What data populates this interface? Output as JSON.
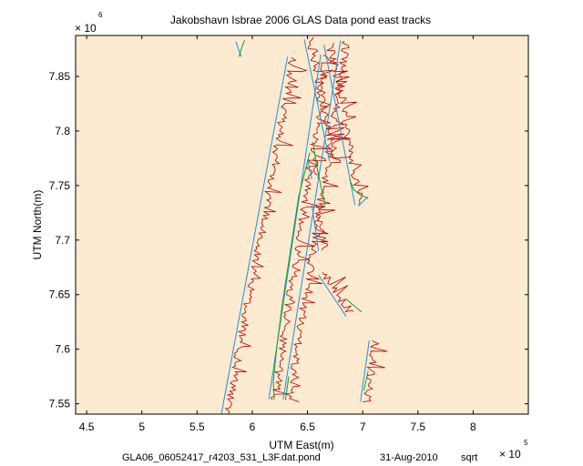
{
  "chart_data": {
    "type": "line",
    "title": "Jakobshavn Isbrae 2006 GLAS Data pond east tracks",
    "xlabel": "UTM East(m)",
    "ylabel": "UTM North(m)",
    "x_exponent_label": "× 10",
    "x_exponent_power": "5",
    "y_exponent_label": "× 10",
    "y_exponent_power": "6",
    "xlim": [
      4.4,
      8.5
    ],
    "ylim": [
      7.5405,
      7.8875
    ],
    "x_scale_note": "values in units of 1e5 m",
    "y_scale_note": "values in units of 1e6 m",
    "x_ticks": [
      4.5,
      5,
      5.5,
      6,
      6.5,
      7,
      7.5,
      8
    ],
    "x_tick_labels": [
      "4.5",
      "5",
      "5.5",
      "6",
      "6.5",
      "7",
      "7.5",
      "8"
    ],
    "y_ticks": [
      7.55,
      7.6,
      7.65,
      7.7,
      7.75,
      7.8,
      7.85
    ],
    "y_tick_labels": [
      "7.55",
      "7.6",
      "7.65",
      "7.7",
      "7.75",
      "7.8",
      "7.85"
    ],
    "grid": false,
    "colors": {
      "background": "#fcebd0",
      "track": "#1f8fe0",
      "elevation": "#b30000",
      "ground_segment": "#10a020"
    },
    "series": [
      {
        "role": "track",
        "color": "#1f8fe0",
        "x": [
          5.72,
          6.32
        ],
        "y": [
          7.5405,
          7.868
        ]
      },
      {
        "role": "track",
        "color": "#1f8fe0",
        "x": [
          6.15,
          6.62
        ],
        "y": [
          7.554,
          7.87
        ]
      },
      {
        "role": "track",
        "color": "#1f8fe0",
        "x": [
          6.28,
          6.8
        ],
        "y": [
          7.554,
          7.883
        ]
      },
      {
        "role": "track",
        "color": "#1f8fe0",
        "x": [
          6.47,
          6.7
        ],
        "y": [
          7.884,
          7.772
        ]
      },
      {
        "role": "track",
        "color": "#1f8fe0",
        "x": [
          6.65,
          6.93
        ],
        "y": [
          7.879,
          7.732
        ]
      },
      {
        "role": "track",
        "color": "#1f8fe0",
        "x": [
          6.5,
          6.54
        ],
        "y": [
          7.774,
          7.756
        ]
      },
      {
        "role": "track",
        "color": "#1f8fe0",
        "x": [
          6.54,
          6.6
        ],
        "y": [
          7.732,
          7.69
        ]
      },
      {
        "role": "track",
        "color": "#1f8fe0",
        "x": [
          6.6,
          6.85
        ],
        "y": [
          7.668,
          7.63
        ]
      },
      {
        "role": "track",
        "color": "#1f8fe0",
        "x": [
          6.98,
          7.06
        ],
        "y": [
          7.552,
          7.608
        ]
      },
      {
        "role": "track",
        "color": "#1f8fe0",
        "x": [
          6.96,
          7.05
        ],
        "y": [
          7.731,
          7.74
        ]
      },
      {
        "role": "track",
        "color": "#1f8fe0",
        "x": [
          5.85,
          5.9
        ],
        "y": [
          7.882,
          7.868
        ]
      },
      {
        "role": "ground_segment",
        "color": "#10a020",
        "x": [
          6.2,
          6.19,
          6.22,
          6.27,
          6.3,
          6.36,
          6.42,
          6.52
        ],
        "y": [
          7.554,
          7.57,
          7.6,
          7.64,
          7.66,
          7.7,
          7.74,
          7.78
        ]
      },
      {
        "role": "ground_segment",
        "color": "#10a020",
        "x": [
          6.55,
          6.58,
          6.62,
          6.66
        ],
        "y": [
          7.79,
          7.77,
          7.75,
          7.732
        ]
      },
      {
        "role": "ground_segment",
        "color": "#10a020",
        "x": [
          6.88,
          6.92,
          6.97,
          7.05
        ],
        "y": [
          7.756,
          7.746,
          7.742,
          7.738
        ]
      },
      {
        "role": "ground_segment",
        "color": "#10a020",
        "x": [
          6.3,
          6.33
        ],
        "y": [
          7.553,
          7.575
        ]
      },
      {
        "role": "ground_segment",
        "color": "#10a020",
        "x": [
          6.85,
          6.99
        ],
        "y": [
          7.646,
          7.634
        ]
      },
      {
        "role": "ground_segment",
        "color": "#10a020",
        "x": [
          5.88,
          5.9,
          5.93
        ],
        "y": [
          7.868,
          7.875,
          7.883
        ]
      },
      {
        "role": "ground_segment",
        "color": "#10a020",
        "x": [
          7.01,
          7.05
        ],
        "y": [
          7.562,
          7.58
        ]
      }
    ]
  },
  "footer": {
    "filename": "GLA06_06052417_r4203_531_L3F.dat.pond",
    "date": "31-Aug-2010",
    "tag": "sqrt"
  }
}
